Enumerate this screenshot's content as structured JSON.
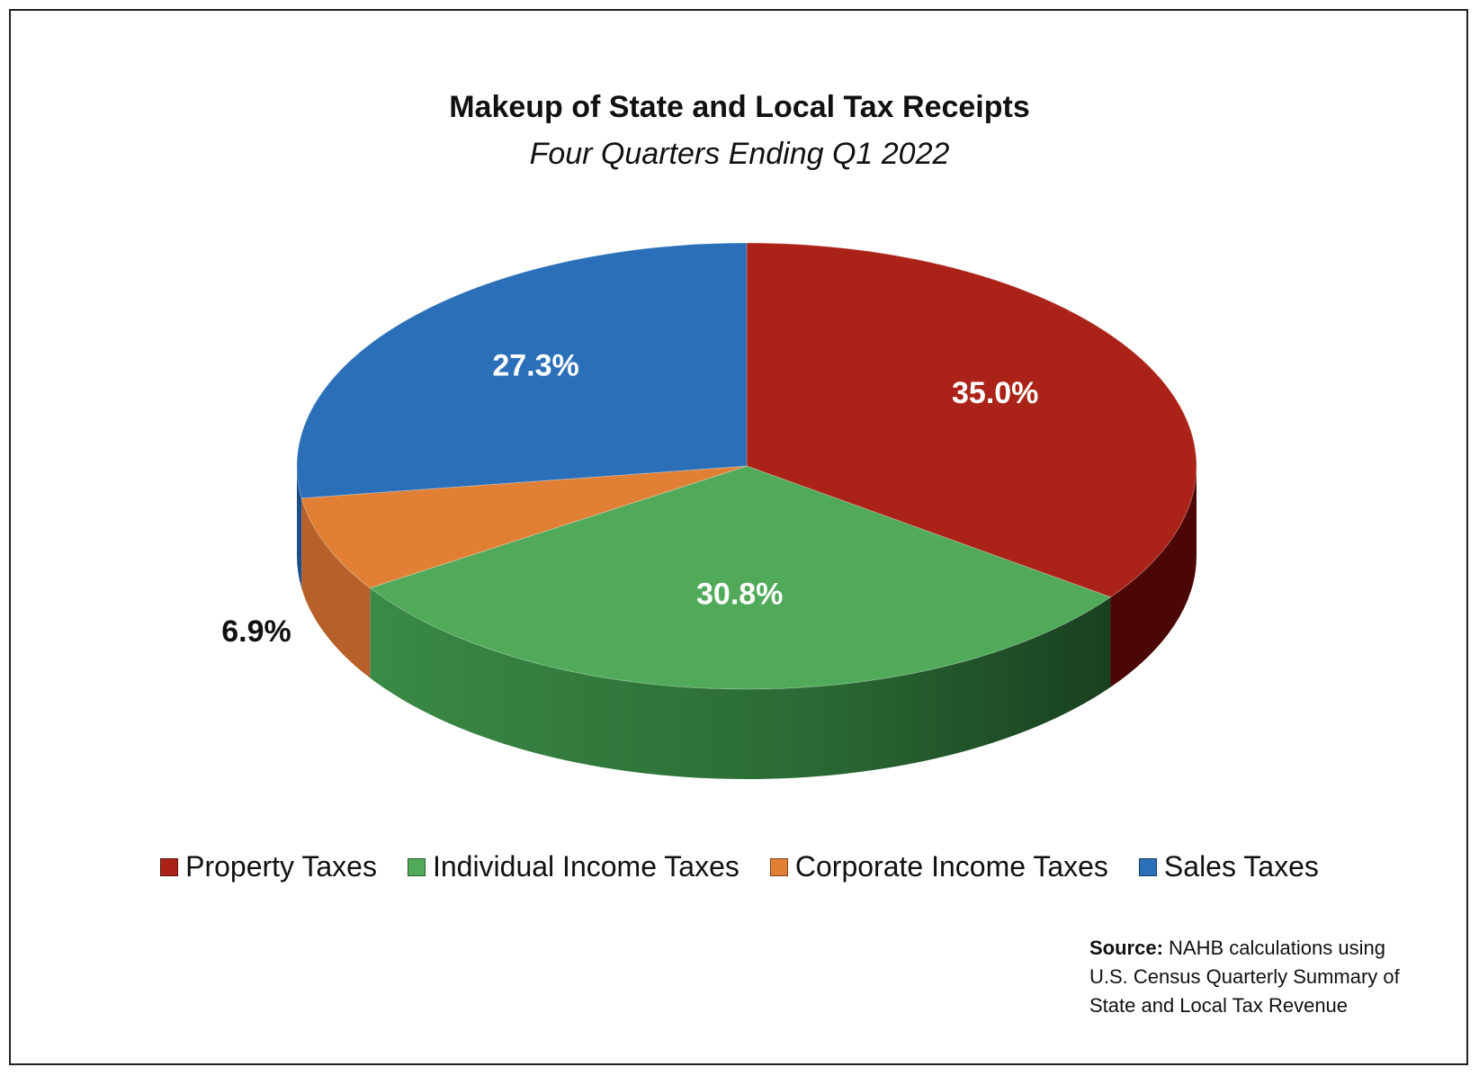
{
  "chart_data": {
    "type": "pie",
    "title": "Makeup of State and Local Tax Receipts",
    "subtitle": "Four Quarters Ending Q1 2022",
    "slices": [
      {
        "name": "Property Taxes",
        "value": 35.0,
        "label": "35.0%",
        "color": "#ab2318",
        "side_color": "#4a0705"
      },
      {
        "name": "Individual Income Taxes",
        "value": 30.8,
        "label": "30.8%",
        "color": "#50aa59",
        "side_color": "#2f7a3a"
      },
      {
        "name": "Corporate Income Taxes",
        "value": 6.9,
        "label": "6.9%",
        "color": "#e17f35",
        "side_color": "#b8602a"
      },
      {
        "name": "Sales Taxes",
        "value": 27.3,
        "label": "27.3%",
        "color": "#2b6fb8",
        "side_color": "#1d4f86"
      }
    ],
    "legend_position": "bottom"
  },
  "source": {
    "bold": "Source:",
    "line1": "NAHB calculations using",
    "line2": "U.S. Census Quarterly Summary of",
    "line3": "State and Local Tax Revenue"
  }
}
